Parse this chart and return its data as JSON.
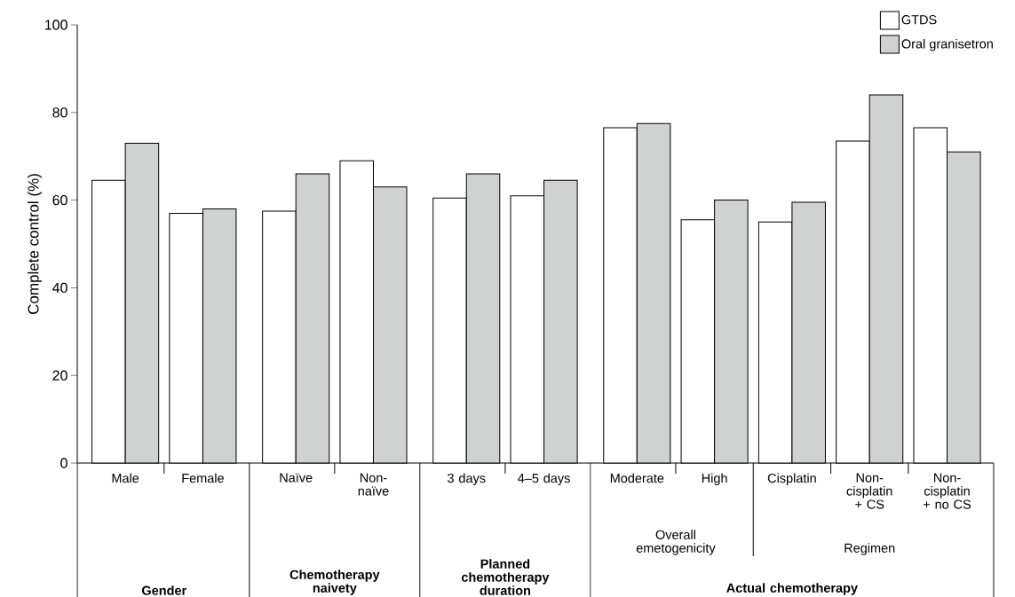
{
  "chart_data": {
    "type": "bar",
    "ylabel": "Complete control (%)",
    "categories": [
      "Male",
      "Female",
      "Naïve",
      "Non-naïve",
      "3 days",
      "4–5 days",
      "Moderate",
      "High",
      "Cisplatin",
      "Non-cisplatin + CS",
      "Non-cisplatin + no CS"
    ],
    "series": [
      {
        "name": "GTDS",
        "color": "#ffffff",
        "values": [
          64.5,
          57,
          57.5,
          69,
          60.5,
          61,
          76.5,
          55.5,
          55,
          73.5,
          76.5
        ]
      },
      {
        "name": "Oral granisetron",
        "color": "#d0d1d1",
        "values": [
          73,
          58,
          66,
          63,
          66,
          64.5,
          77.5,
          60,
          59.5,
          84,
          71
        ]
      }
    ],
    "annotations": [
      "Overall emetogenicity",
      "Regimen",
      "Gender",
      "Chemotherapy naivety",
      "Planned chemotherapy duration",
      "Actual chemotherapy"
    ],
    "ylim": [
      0,
      100
    ],
    "yticks": [
      0,
      20,
      40,
      60,
      80,
      100
    ],
    "legend": "top right"
  }
}
